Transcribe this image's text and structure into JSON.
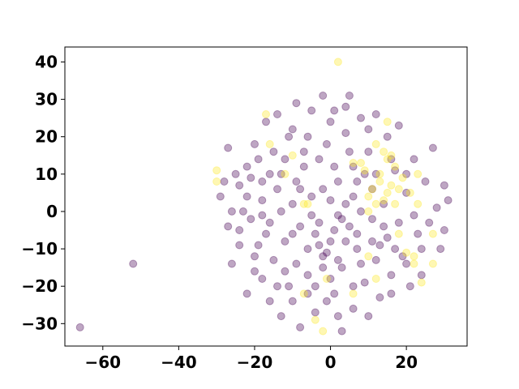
{
  "chart_data": {
    "type": "scatter",
    "title": "",
    "xlabel": "",
    "ylabel": "",
    "xlim": [
      -70,
      36
    ],
    "ylim": [
      -36,
      44
    ],
    "grid": false,
    "legend": "none",
    "x_ticks": [
      -60,
      -40,
      -20,
      0,
      20
    ],
    "y_ticks": [
      -30,
      -20,
      -10,
      0,
      10,
      20,
      30,
      40
    ],
    "x_tick_labels": [
      "−60",
      "−40",
      "−20",
      "0",
      "20"
    ],
    "y_tick_labels": [
      "−30",
      "−20",
      "−10",
      "0",
      "10",
      "20",
      "30",
      "40"
    ],
    "point_alpha": 0.35,
    "series": [
      {
        "color": "#440154",
        "points": [
          [
            -66,
            -31
          ],
          [
            -52,
            -14
          ],
          [
            -29,
            4
          ],
          [
            -27,
            17
          ],
          [
            -26,
            -14
          ],
          [
            -24,
            -5
          ],
          [
            -24,
            7
          ],
          [
            -22,
            -22
          ],
          [
            -22,
            12
          ],
          [
            -21,
            -2
          ],
          [
            -20,
            18
          ],
          [
            -19,
            -9
          ],
          [
            -18,
            -18
          ],
          [
            -18,
            3
          ],
          [
            -17,
            24
          ],
          [
            -16,
            -24
          ],
          [
            -16,
            10
          ],
          [
            -15,
            -13
          ],
          [
            -14,
            26
          ],
          [
            -13,
            -28
          ],
          [
            -13,
            0
          ],
          [
            -12,
            14
          ],
          [
            -11,
            -20
          ],
          [
            -10,
            22
          ],
          [
            -10,
            -6
          ],
          [
            -9,
            29
          ],
          [
            -8,
            -31
          ],
          [
            -8,
            6
          ],
          [
            -7,
            12
          ],
          [
            -6,
            -17
          ],
          [
            -5,
            27
          ],
          [
            -4,
            -27
          ],
          [
            -3,
            -3
          ],
          [
            -2,
            31
          ],
          [
            -2,
            -12
          ],
          [
            -1,
            18
          ],
          [
            0,
            -8
          ],
          [
            0,
            3
          ],
          [
            1,
            27
          ],
          [
            1,
            -22
          ],
          [
            2,
            8
          ],
          [
            3,
            -15
          ],
          [
            3,
            -32
          ],
          [
            4,
            21
          ],
          [
            5,
            -4
          ],
          [
            5,
            31
          ],
          [
            6,
            12
          ],
          [
            6,
            -26
          ],
          [
            7,
            -10
          ],
          [
            8,
            25
          ],
          [
            8,
            0
          ],
          [
            9,
            -19
          ],
          [
            10,
            16
          ],
          [
            10,
            -28
          ],
          [
            11,
            6
          ],
          [
            12,
            -13
          ],
          [
            12,
            26
          ],
          [
            13,
            -23
          ],
          [
            14,
            2
          ],
          [
            15,
            -7
          ],
          [
            15,
            20
          ],
          [
            16,
            -17
          ],
          [
            17,
            11
          ],
          [
            18,
            -3
          ],
          [
            18,
            23
          ],
          [
            19,
            -12
          ],
          [
            20,
            5
          ],
          [
            21,
            -20
          ],
          [
            22,
            14
          ],
          [
            23,
            -6
          ],
          [
            24,
            -17
          ],
          [
            25,
            8
          ],
          [
            26,
            -3
          ],
          [
            27,
            17
          ],
          [
            28,
            1
          ],
          [
            29,
            -10
          ],
          [
            30,
            7
          ],
          [
            30,
            -5
          ],
          [
            31,
            3
          ],
          [
            -4,
            -6
          ],
          [
            -3,
            -9
          ],
          [
            -1,
            -11
          ],
          [
            1,
            -5
          ],
          [
            2,
            -13
          ],
          [
            4,
            -8
          ],
          [
            -6,
            -10
          ],
          [
            -2,
            -15
          ],
          [
            0,
            -18
          ],
          [
            3,
            -2
          ],
          [
            6,
            4
          ],
          [
            4,
            2
          ],
          [
            7,
            -6
          ],
          [
            -5,
            -1
          ],
          [
            -8,
            -4
          ],
          [
            -10,
            2
          ],
          [
            -12,
            -8
          ],
          [
            -14,
            6
          ],
          [
            -16,
            -3
          ],
          [
            -18,
            8
          ],
          [
            -20,
            -12
          ],
          [
            -22,
            4
          ],
          [
            -9,
            -14
          ],
          [
            -7,
            16
          ],
          [
            -11,
            20
          ],
          [
            -15,
            16
          ],
          [
            -3,
            14
          ],
          [
            1,
            12
          ],
          [
            5,
            16
          ],
          [
            9,
            10
          ],
          [
            11,
            -2
          ],
          [
            13,
            -9
          ],
          [
            8,
            -14
          ],
          [
            6,
            -20
          ],
          [
            -1,
            -24
          ],
          [
            -6,
            -22
          ],
          [
            -12,
            -16
          ],
          [
            -17,
            -6
          ],
          [
            -23,
            0
          ],
          [
            -25,
            10
          ],
          [
            -19,
            14
          ],
          [
            -13,
            10
          ],
          [
            -6,
            20
          ],
          [
            0,
            24
          ],
          [
            4,
            28
          ],
          [
            10,
            22
          ],
          [
            16,
            14
          ],
          [
            20,
            10
          ],
          [
            22,
            -1
          ],
          [
            24,
            -10
          ],
          [
            20,
            -14
          ],
          [
            16,
            -22
          ],
          [
            11,
            -8
          ],
          [
            2,
            -28
          ],
          [
            -4,
            -20
          ],
          [
            -10,
            -24
          ],
          [
            -14,
            -20
          ],
          [
            -20,
            -16
          ],
          [
            -24,
            -9
          ],
          [
            -27,
            -4
          ],
          [
            -28,
            8
          ],
          [
            -26,
            0
          ],
          [
            -21,
            9
          ],
          [
            -18,
            -1
          ],
          [
            -9,
            8
          ],
          [
            -5,
            4
          ],
          [
            -2,
            6
          ],
          [
            2,
            -1
          ],
          [
            7,
            8
          ],
          [
            12,
            10
          ],
          [
            14,
            -4
          ],
          [
            17,
            -10
          ]
        ]
      },
      {
        "color": "#fde725",
        "points": [
          [
            2,
            40
          ],
          [
            -30,
            11
          ],
          [
            -30,
            8
          ],
          [
            -17,
            26
          ],
          [
            -16,
            18
          ],
          [
            -7,
            2
          ],
          [
            -6,
            2
          ],
          [
            -7,
            -22
          ],
          [
            -4,
            -29
          ],
          [
            -2,
            -32
          ],
          [
            -1,
            -18
          ],
          [
            6,
            13
          ],
          [
            8,
            13
          ],
          [
            9,
            11
          ],
          [
            10,
            4
          ],
          [
            10,
            0
          ],
          [
            11,
            6
          ],
          [
            12,
            2
          ],
          [
            12,
            18
          ],
          [
            12,
            -18
          ],
          [
            13,
            8
          ],
          [
            13,
            10
          ],
          [
            14,
            3
          ],
          [
            14,
            16
          ],
          [
            15,
            5
          ],
          [
            15,
            14
          ],
          [
            15,
            24
          ],
          [
            16,
            7
          ],
          [
            16,
            15
          ],
          [
            17,
            2
          ],
          [
            17,
            12
          ],
          [
            18,
            6
          ],
          [
            19,
            9
          ],
          [
            20,
            -11
          ],
          [
            21,
            5
          ],
          [
            22,
            -12
          ],
          [
            22,
            -14
          ],
          [
            23,
            10
          ],
          [
            23,
            2
          ],
          [
            24,
            -19
          ],
          [
            27,
            -14
          ],
          [
            27,
            -6
          ],
          [
            10,
            -12
          ],
          [
            18,
            -6
          ],
          [
            6,
            -22
          ],
          [
            -12,
            10
          ],
          [
            -10,
            15
          ]
        ]
      }
    ]
  }
}
